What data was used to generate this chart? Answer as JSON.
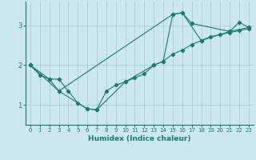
{
  "title": "",
  "xlabel": "Humidex (Indice chaleur)",
  "bg_color": "#cce8ee",
  "grid_color": "#aacdd5",
  "line_color": "#1a7a6e",
  "xlim": [
    -0.5,
    23.5
  ],
  "ylim": [
    0.5,
    3.6
  ],
  "yticks": [
    1,
    2,
    3
  ],
  "xticks": [
    0,
    1,
    2,
    3,
    4,
    5,
    6,
    7,
    8,
    9,
    10,
    11,
    12,
    13,
    14,
    15,
    16,
    17,
    18,
    19,
    20,
    21,
    22,
    23
  ],
  "line1_x": [
    0,
    1,
    2,
    3,
    4,
    5,
    6,
    7,
    8,
    9,
    10,
    11,
    12,
    13,
    14,
    15,
    16,
    17,
    18,
    19,
    20,
    21,
    22,
    23
  ],
  "line1_y": [
    2.0,
    1.75,
    1.65,
    1.65,
    1.35,
    1.05,
    0.9,
    0.88,
    1.35,
    1.5,
    1.58,
    1.68,
    1.78,
    2.0,
    2.1,
    2.28,
    2.38,
    2.52,
    2.62,
    2.72,
    2.77,
    2.82,
    2.87,
    2.92
  ],
  "line2_x": [
    0,
    2,
    3,
    15,
    16,
    17,
    21,
    22,
    23
  ],
  "line2_y": [
    2.0,
    1.65,
    1.35,
    3.28,
    3.32,
    3.05,
    2.85,
    3.08,
    2.95
  ],
  "line3_x": [
    0,
    3,
    6,
    7,
    10,
    13,
    14,
    15,
    16,
    18,
    21,
    23
  ],
  "line3_y": [
    2.0,
    1.35,
    0.9,
    0.88,
    1.58,
    2.0,
    2.1,
    3.28,
    3.32,
    2.62,
    2.85,
    2.95
  ]
}
